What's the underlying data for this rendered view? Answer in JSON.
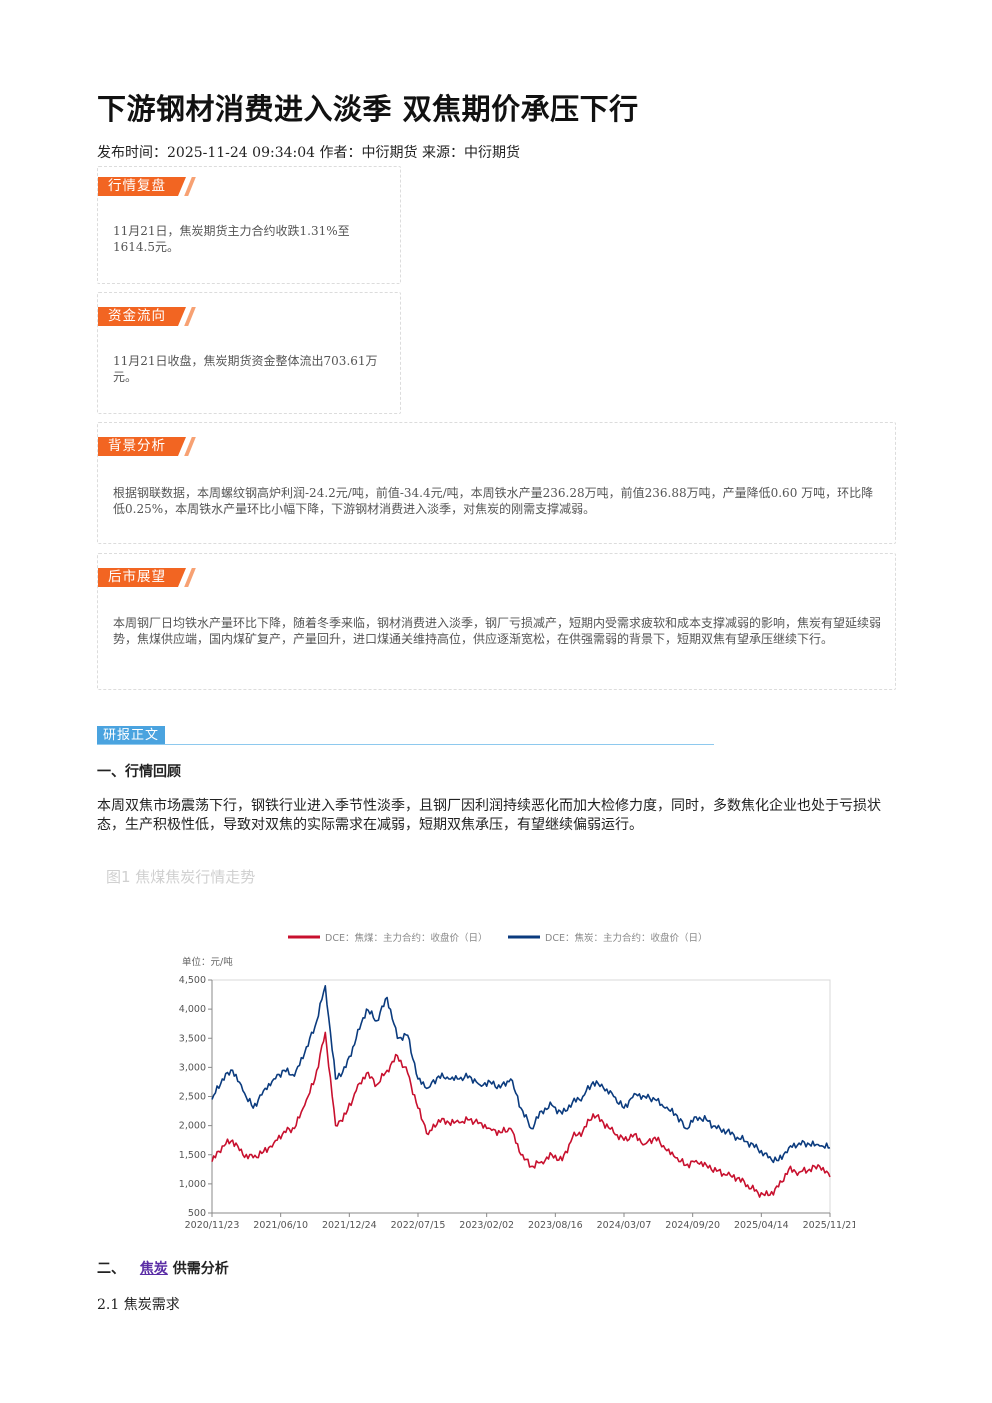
{
  "article": {
    "title": "下游钢材消费进入淡季 双焦期价承压下行",
    "meta": "发布时间：2025-11-24 09:34:04 作者：中衍期货 来源：中衍期货"
  },
  "cards": {
    "market": {
      "tag": "行情复盘",
      "text": "11月21日，焦炭期货主力合约收跌1.31%至1614.5元。"
    },
    "funds": {
      "tag": "资金流向",
      "text": "11月21日收盘，焦炭期货资金整体流出703.61万元。"
    },
    "background": {
      "tag": "背景分析",
      "text": "根据钢联数据，本周螺纹钢高炉利润-24.2元/吨，前值-34.4元/吨，本周铁水产量236.28万吨，前值236.88万吨，产量降低0.60 万吨，环比降低0.25%，本周铁水产量环比小幅下降，下游钢材消费进入淡季，对焦炭的刚需支撑减弱。"
    },
    "outlook": {
      "tag": "后市展望",
      "text": "本周钢厂日均铁水产量环比下降，随着冬季来临，钢材消费进入淡季，钢厂亏损减产，短期内受需求疲软和成本支撑减弱的影响，焦炭有望延续弱势，焦煤供应端，国内煤矿复产，产量回升，进口煤通关维持高位，供应逐渐宽松，在供强需弱的背景下，短期双焦有望承压继续下行。"
    }
  },
  "report": {
    "tag": "研报正文",
    "section1_title": "一、行情回顾",
    "section1_text": "本周双焦市场震荡下行，钢铁行业进入季节性淡季，且钢厂因利润持续恶化而加大检修力度，同时，多数焦化企业也处于亏损状态，生产积极性低，导致对双焦的实际需求在减弱，短期双焦承压，有望继续偏弱运行。",
    "figure_title": "图1 焦煤焦炭行情走势",
    "section2_prefix": "二、",
    "section2_link": "焦炭",
    "section2_suffix": "供需分析",
    "section21_title": "2.1 焦炭需求"
  },
  "chart_data": {
    "type": "line",
    "unit_label": "单位：元/吨",
    "ylim": [
      500,
      4500
    ],
    "yticks": [
      500,
      1000,
      1500,
      2000,
      2500,
      3000,
      3500,
      4000,
      4500
    ],
    "ytick_labels": [
      "500",
      "1,000",
      "1,500",
      "2,000",
      "2,500",
      "3,000",
      "3,500",
      "4,000",
      "4,500"
    ],
    "xtick_labels": [
      "2020/11/23",
      "2021/06/10",
      "2021/12/24",
      "2022/07/15",
      "2023/02/02",
      "2023/08/16",
      "2024/03/07",
      "2024/09/20",
      "2025/04/14",
      "2025/11/21"
    ],
    "x_months": [
      "2020-11",
      "2020-12",
      "2021-01",
      "2021-02",
      "2021-03",
      "2021-04",
      "2021-05",
      "2021-06",
      "2021-07",
      "2021-08",
      "2021-09",
      "2021-10",
      "2021-11",
      "2021-12",
      "2022-01",
      "2022-02",
      "2022-03",
      "2022-04",
      "2022-05",
      "2022-06",
      "2022-07",
      "2022-08",
      "2022-09",
      "2022-10",
      "2022-11",
      "2022-12",
      "2023-01",
      "2023-02",
      "2023-03",
      "2023-04",
      "2023-05",
      "2023-06",
      "2023-07",
      "2023-08",
      "2023-09",
      "2023-10",
      "2023-11",
      "2023-12",
      "2024-01",
      "2024-02",
      "2024-03",
      "2024-04",
      "2024-05",
      "2024-06",
      "2024-07",
      "2024-08",
      "2024-09",
      "2024-10",
      "2024-11",
      "2024-12",
      "2025-01",
      "2025-02",
      "2025-03",
      "2025-04",
      "2025-05",
      "2025-06",
      "2025-07",
      "2025-08",
      "2025-09",
      "2025-10",
      "2025-11"
    ],
    "series": [
      {
        "name": "DCE：焦煤：主力合约：收盘价（日）",
        "color": "#c8102e",
        "values": [
          1380,
          1650,
          1750,
          1500,
          1450,
          1550,
          1700,
          1900,
          1950,
          2350,
          2800,
          3600,
          2000,
          2200,
          2600,
          2900,
          2700,
          2950,
          3200,
          2900,
          2300,
          1850,
          2100,
          2050,
          2050,
          2100,
          2050,
          1950,
          1880,
          1950,
          1500,
          1300,
          1380,
          1500,
          1400,
          1800,
          1900,
          2200,
          2050,
          1880,
          1750,
          1850,
          1680,
          1800,
          1600,
          1450,
          1320,
          1400,
          1320,
          1220,
          1150,
          1100,
          980,
          850,
          800,
          950,
          1250,
          1200,
          1250,
          1300,
          1120
        ]
      },
      {
        "name": "DCE：焦炭：主力合约：收盘价（日）",
        "color": "#0b3b7e",
        "values": [
          2450,
          2800,
          2950,
          2600,
          2300,
          2600,
          2800,
          2950,
          2850,
          3250,
          3700,
          4400,
          2800,
          3000,
          3500,
          4000,
          3800,
          4200,
          3500,
          3550,
          2800,
          2650,
          2850,
          2800,
          2800,
          2850,
          2700,
          2750,
          2650,
          2800,
          2300,
          1950,
          2250,
          2350,
          2200,
          2400,
          2500,
          2750,
          2650,
          2500,
          2300,
          2550,
          2500,
          2450,
          2300,
          2200,
          1950,
          2150,
          2100,
          1950,
          1900,
          1800,
          1720,
          1600,
          1450,
          1400,
          1620,
          1700,
          1680,
          1650,
          1620
        ]
      }
    ],
    "grid": false,
    "legend": "top-center"
  }
}
